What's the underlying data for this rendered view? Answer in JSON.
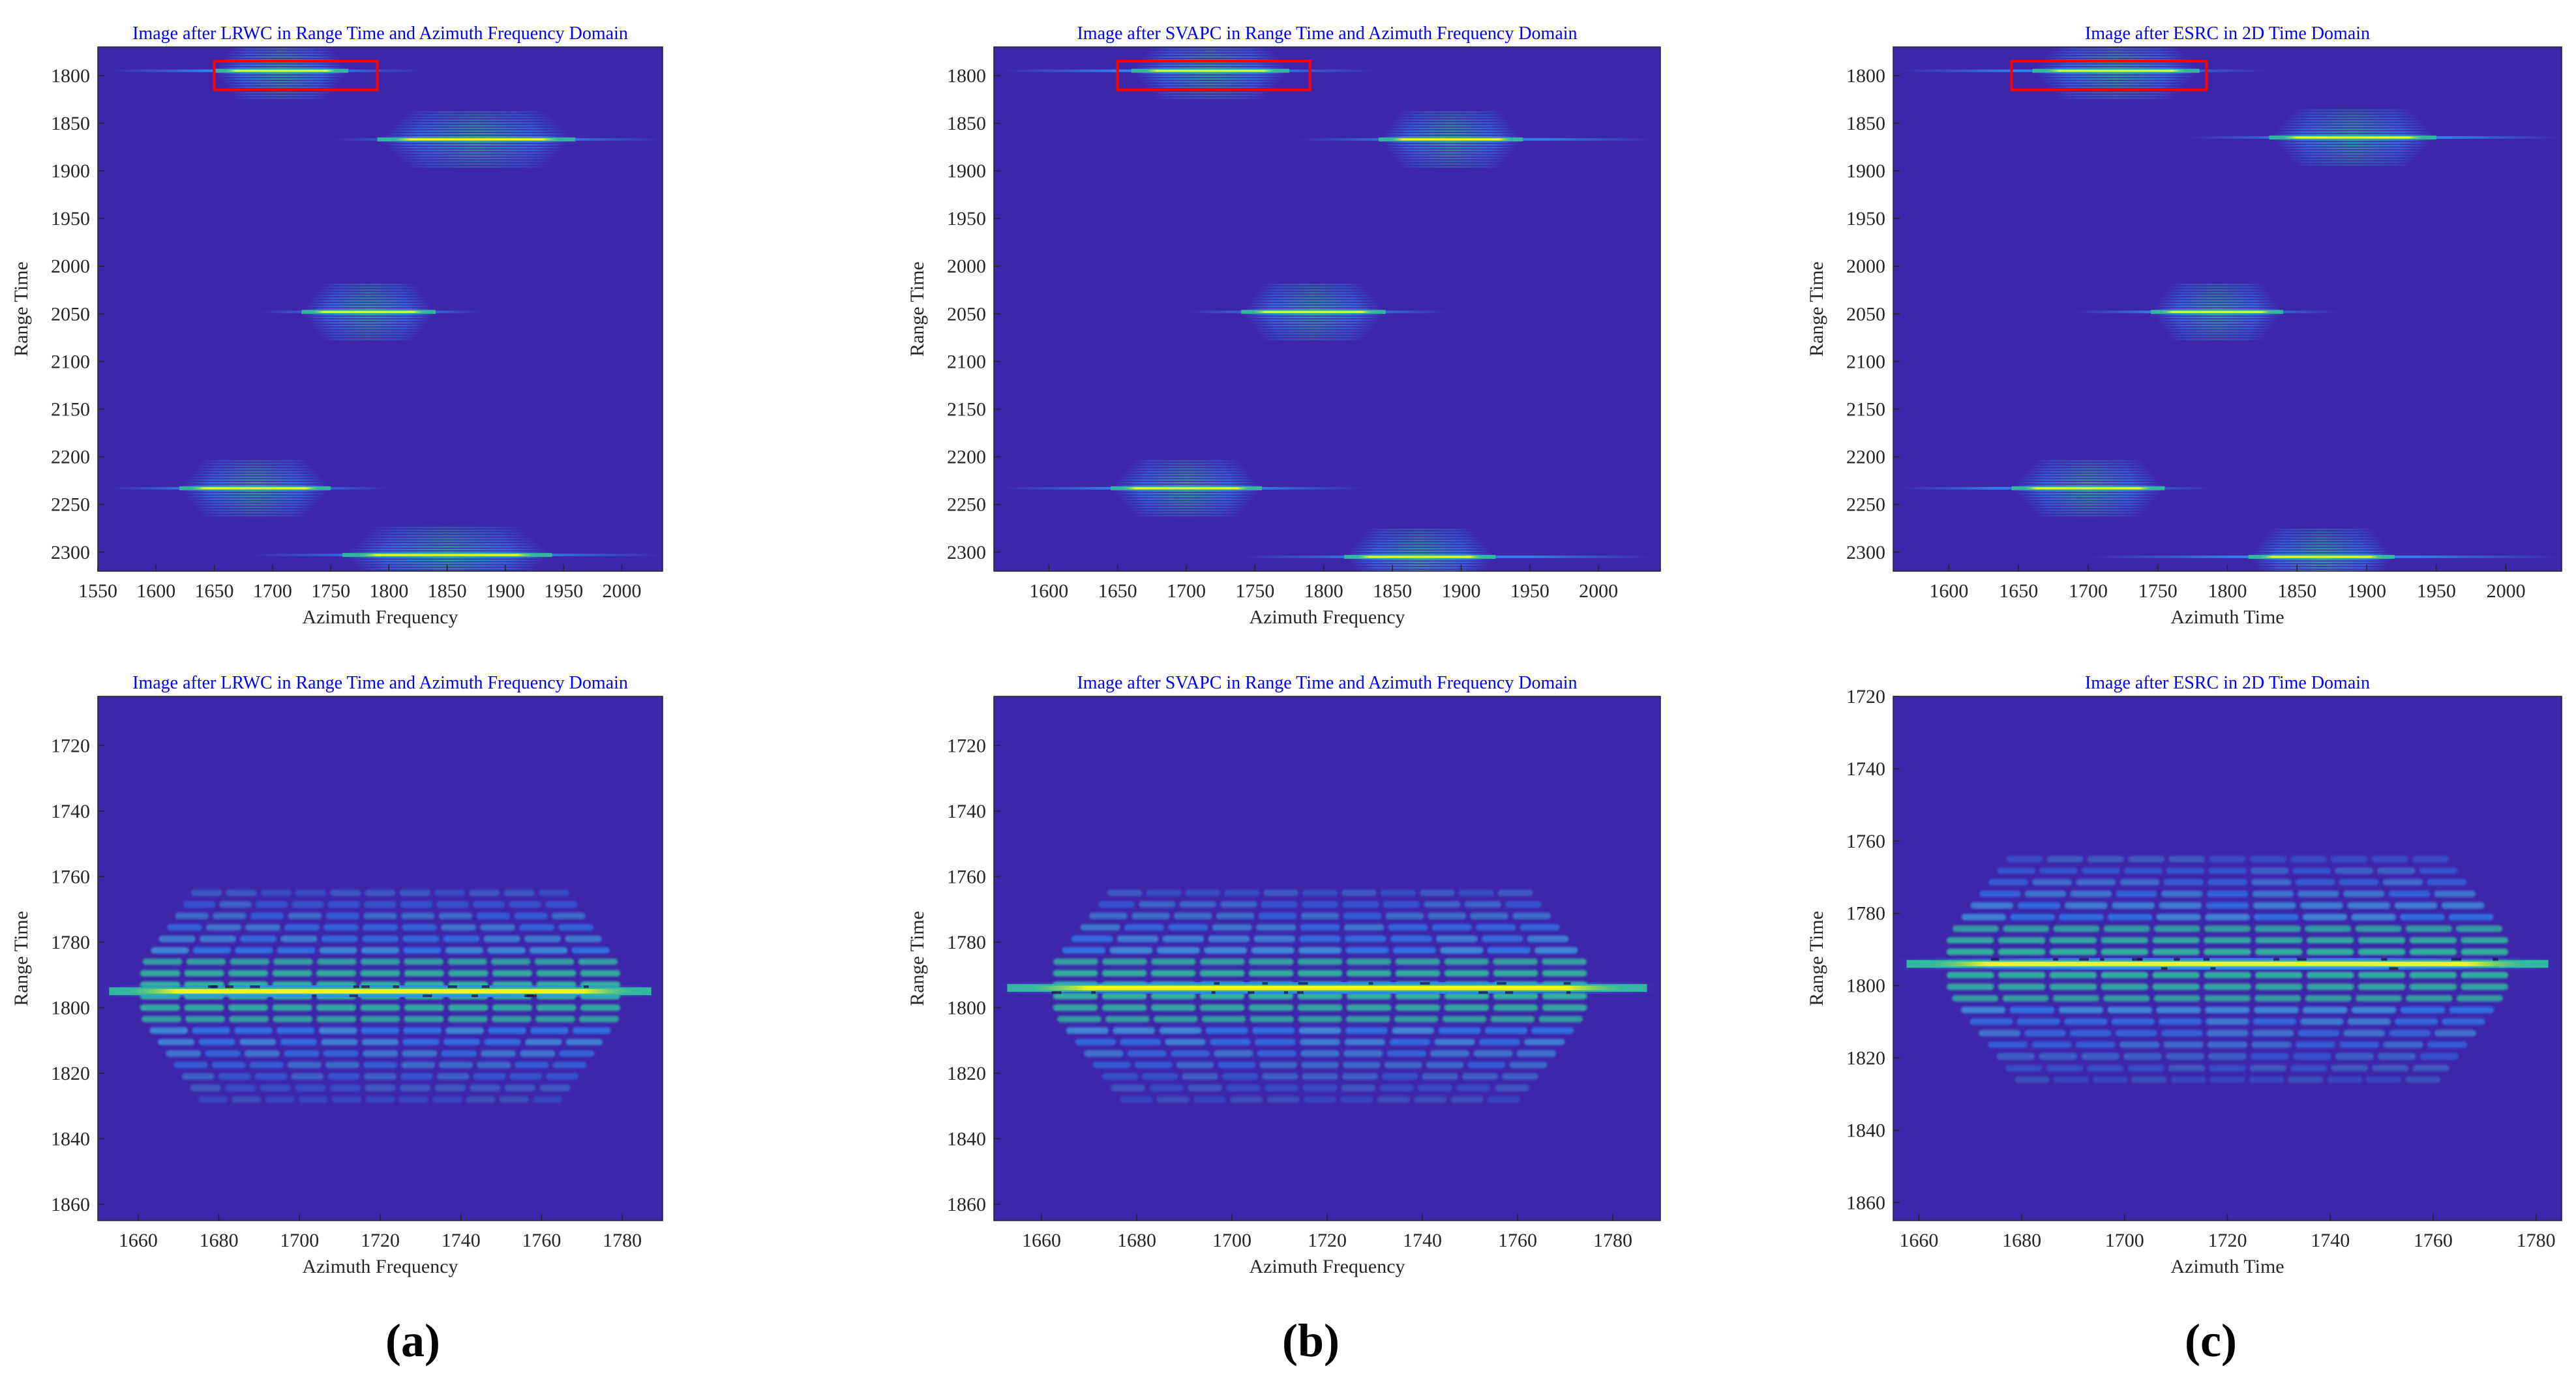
{
  "figure": {
    "panel_labels": [
      "(a)",
      "(b)",
      "(c)"
    ]
  },
  "colors": {
    "background": "#3e26a8",
    "ridge_core": "#f9fb0e",
    "ridge_mid": "#33b7a0",
    "ridge_outer": "#2e87f7",
    "dark_spots": "#1a0a3a",
    "zoom_box": "#ff0000",
    "title": "#0000ff"
  },
  "chart_data": [
    {
      "id": "a-overview",
      "type": "heatmap",
      "title": "Image after LRWC in Range Time and Azimuth Frequency Domain",
      "xlabel": "Azimuth Frequency",
      "ylabel": "Range Time",
      "xlim": [
        1550,
        2035
      ],
      "ylim": [
        2320,
        1770
      ],
      "xticks": [
        1550,
        1600,
        1650,
        1700,
        1750,
        1800,
        1850,
        1900,
        1950,
        2000
      ],
      "yticks": [
        1800,
        1850,
        1900,
        1950,
        2000,
        2050,
        2100,
        2150,
        2200,
        2250,
        2300
      ],
      "targets": [
        {
          "x0": 1650,
          "x1": 1765,
          "y": 1795,
          "tail": [
            1560,
            1830
          ]
        },
        {
          "x0": 1790,
          "x1": 1960,
          "y": 1867,
          "tail": [
            1750,
            2035
          ]
        },
        {
          "x0": 1725,
          "x1": 1840,
          "y": 2048,
          "tail": [
            1690,
            1880
          ]
        },
        {
          "x0": 1620,
          "x1": 1750,
          "y": 2233,
          "tail": [
            1560,
            1800
          ]
        },
        {
          "x0": 1760,
          "x1": 1940,
          "y": 2303,
          "tail": [
            1680,
            2035
          ]
        }
      ],
      "zoom_box": {
        "x0": 1650,
        "x1": 1790,
        "y0": 1785,
        "y1": 1815
      }
    },
    {
      "id": "b-overview",
      "type": "heatmap",
      "title": "Image after SVAPC in Range Time and Azimuth Frequency Domain",
      "xlabel": "Azimuth Frequency",
      "ylabel": "Range Time",
      "xlim": [
        1560,
        2045
      ],
      "ylim": [
        2320,
        1770
      ],
      "xticks": [
        1600,
        1650,
        1700,
        1750,
        1800,
        1850,
        1900,
        1950,
        2000
      ],
      "yticks": [
        1800,
        1850,
        1900,
        1950,
        2000,
        2050,
        2100,
        2150,
        2200,
        2250,
        2300
      ],
      "targets": [
        {
          "x0": 1660,
          "x1": 1775,
          "y": 1795,
          "tail": [
            1565,
            1840
          ]
        },
        {
          "x0": 1840,
          "x1": 1945,
          "y": 1867,
          "tail": [
            1780,
            2040
          ]
        },
        {
          "x0": 1740,
          "x1": 1845,
          "y": 2048,
          "tail": [
            1700,
            1890
          ]
        },
        {
          "x0": 1645,
          "x1": 1755,
          "y": 2233,
          "tail": [
            1565,
            1830
          ]
        },
        {
          "x0": 1815,
          "x1": 1925,
          "y": 2305,
          "tail": [
            1740,
            2040
          ]
        }
      ],
      "zoom_box": {
        "x0": 1650,
        "x1": 1790,
        "y0": 1785,
        "y1": 1815
      }
    },
    {
      "id": "c-overview",
      "type": "heatmap",
      "title": "Image after ESRC in 2D Time Domain",
      "xlabel": "Azimuth Time",
      "ylabel": "Range Time",
      "xlim": [
        1560,
        2040
      ],
      "ylim": [
        2320,
        1770
      ],
      "xticks": [
        1600,
        1650,
        1700,
        1750,
        1800,
        1850,
        1900,
        1950,
        2000
      ],
      "yticks": [
        1800,
        1850,
        1900,
        1950,
        2000,
        2050,
        2100,
        2150,
        2200,
        2250,
        2300
      ],
      "targets": [
        {
          "x0": 1660,
          "x1": 1780,
          "y": 1795,
          "tail": [
            1565,
            1830
          ]
        },
        {
          "x0": 1830,
          "x1": 1950,
          "y": 1865,
          "tail": [
            1770,
            2040
          ]
        },
        {
          "x0": 1745,
          "x1": 1840,
          "y": 2048,
          "tail": [
            1690,
            1880
          ]
        },
        {
          "x0": 1645,
          "x1": 1755,
          "y": 2233,
          "tail": [
            1565,
            1790
          ]
        },
        {
          "x0": 1815,
          "x1": 1920,
          "y": 2305,
          "tail": [
            1700,
            2040
          ]
        }
      ],
      "zoom_box": {
        "x0": 1645,
        "x1": 1785,
        "y0": 1785,
        "y1": 1815
      }
    },
    {
      "id": "a-zoom",
      "type": "heatmap",
      "title": "Image after LRWC in Range Time and Azimuth Frequency Domain",
      "xlabel": "Azimuth Frequency",
      "ylabel": "Range Time",
      "xlim": [
        1650,
        1790
      ],
      "ylim": [
        1865,
        1705
      ],
      "xticks": [
        1660,
        1680,
        1700,
        1720,
        1740,
        1760,
        1780
      ],
      "yticks": [
        1720,
        1740,
        1760,
        1780,
        1800,
        1820,
        1840,
        1860
      ],
      "targets": [
        {
          "x0": 1660,
          "x1": 1780,
          "y": 1795,
          "tail": [
            1650,
            1790
          ]
        }
      ]
    },
    {
      "id": "b-zoom",
      "type": "heatmap",
      "title": "Image after SVAPC in Range Time and Azimuth Frequency Domain",
      "xlabel": "Azimuth Frequency",
      "ylabel": "Range Time",
      "xlim": [
        1650,
        1790
      ],
      "ylim": [
        1865,
        1705
      ],
      "xticks": [
        1660,
        1680,
        1700,
        1720,
        1740,
        1760,
        1780
      ],
      "yticks": [
        1720,
        1740,
        1760,
        1780,
        1800,
        1820,
        1840,
        1860
      ],
      "targets": [
        {
          "x0": 1662,
          "x1": 1775,
          "y": 1794,
          "tail": [
            1650,
            1790
          ]
        }
      ]
    },
    {
      "id": "c-zoom",
      "type": "heatmap",
      "title": "Image after ESRC in 2D Time Domain",
      "xlabel": "Azimuth Time",
      "ylabel": "Range Time",
      "xlim": [
        1655,
        1785
      ],
      "ylim": [
        1865,
        1720
      ],
      "xticks": [
        1660,
        1680,
        1700,
        1720,
        1740,
        1760,
        1780
      ],
      "yticks": [
        1720,
        1740,
        1760,
        1780,
        1800,
        1820,
        1840,
        1860
      ],
      "targets": [
        {
          "x0": 1665,
          "x1": 1775,
          "y": 1794,
          "tail": [
            1655,
            1785
          ]
        }
      ]
    }
  ]
}
